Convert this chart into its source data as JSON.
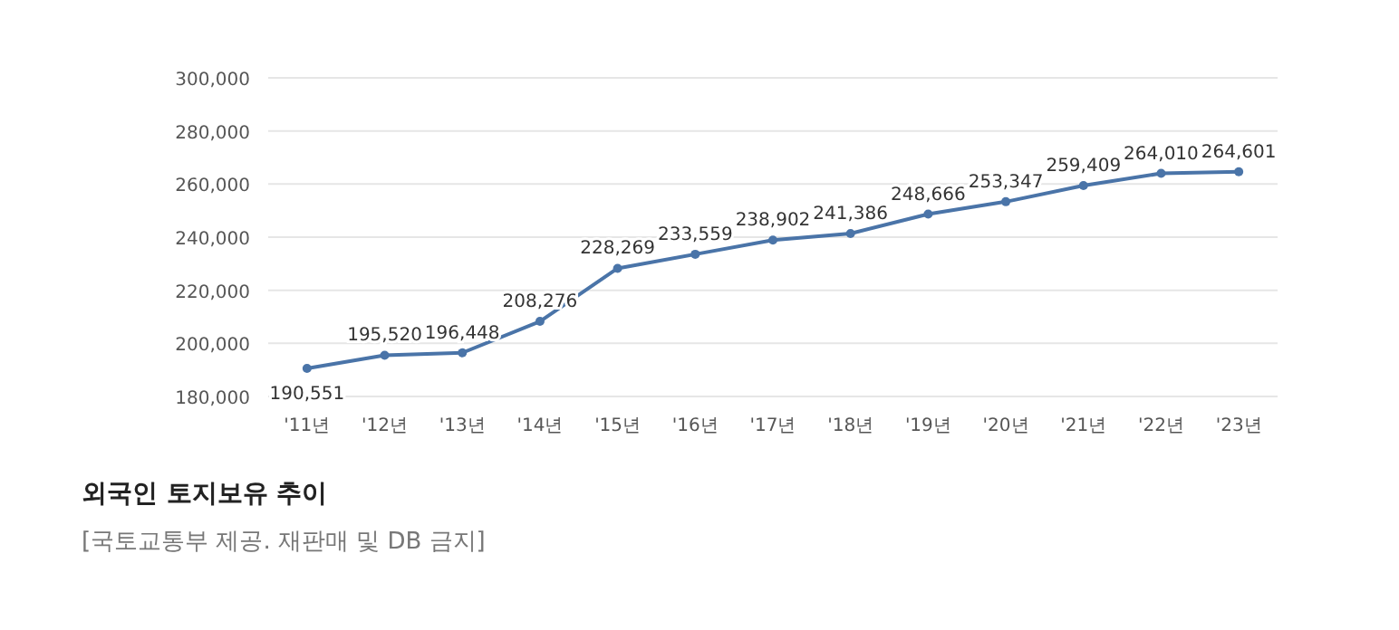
{
  "chart_data": {
    "type": "line",
    "title": "외국인 토지보유 추이",
    "annotations": [
      "[국토교통부 제공. 재판매 및 DB 금지]"
    ],
    "categories": [
      "'11년",
      "'12년",
      "'13년",
      "'14년",
      "'15년",
      "'16년",
      "'17년",
      "'18년",
      "'19년",
      "'20년",
      "'21년",
      "'22년",
      "'23년"
    ],
    "series": [
      {
        "color": "#4a74a8",
        "values": [
          190551,
          195520,
          196448,
          208276,
          228269,
          233559,
          238902,
          241386,
          248666,
          253347,
          259409,
          264010,
          264601
        ],
        "value_labels": [
          "190,551",
          "195,520",
          "196,448",
          "208,276",
          "228,269",
          "233,559",
          "238,902",
          "241,386",
          "248,666",
          "253,347",
          "259,409",
          "264,010",
          "264,601"
        ]
      }
    ],
    "ylim": [
      180000,
      300000
    ],
    "yticks": [
      {
        "value": 180000,
        "label": "180,000"
      },
      {
        "value": 200000,
        "label": "200,000"
      },
      {
        "value": 220000,
        "label": "220,000"
      },
      {
        "value": 240000,
        "label": "240,000"
      },
      {
        "value": 260000,
        "label": "260,000"
      },
      {
        "value": 280000,
        "label": "280,000"
      },
      {
        "value": 300000,
        "label": "300,000"
      }
    ],
    "grid": "y",
    "marker": "circle",
    "line_style": "solid"
  }
}
